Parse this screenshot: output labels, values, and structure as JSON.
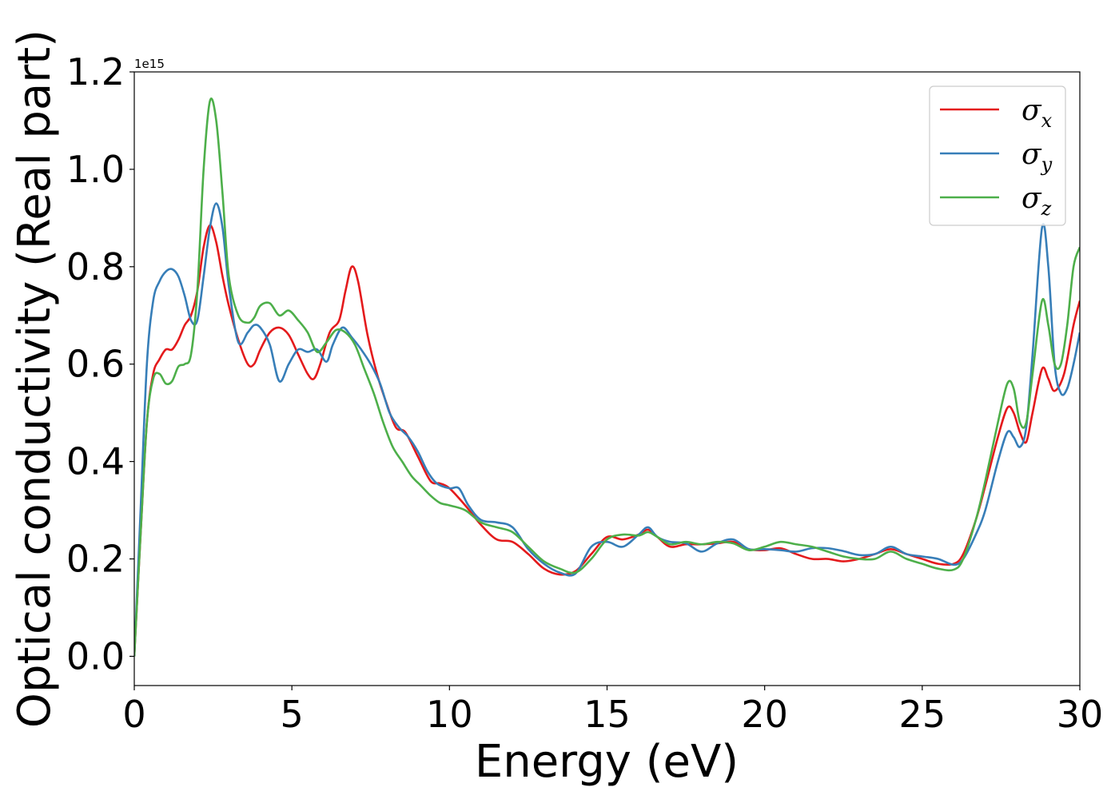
{
  "chart_data": {
    "type": "line",
    "title": "",
    "xlabel": "Energy (eV)",
    "ylabel": "Optical conductivity (Real part)",
    "y_offset_label": "1e15",
    "y_scale": 1000000000000000.0,
    "xlim": [
      0,
      30
    ],
    "ylim": [
      -0.06,
      1.2
    ],
    "x_ticks": [
      0,
      5,
      10,
      15,
      20,
      25,
      30
    ],
    "x_tick_labels": [
      "0",
      "5",
      "10",
      "15",
      "20",
      "25",
      "30"
    ],
    "y_ticks": [
      0.0,
      0.2,
      0.4,
      0.6,
      0.8,
      1.0,
      1.2
    ],
    "y_tick_labels": [
      "0.0",
      "0.2",
      "0.4",
      "0.6",
      "0.8",
      "1.0",
      "1.2"
    ],
    "grid": false,
    "legend": {
      "position": "top-right",
      "entries": [
        {
          "symbol": "σ",
          "subscript": "x",
          "color": "#e41a1c"
        },
        {
          "symbol": "σ",
          "subscript": "y",
          "color": "#377eb8"
        },
        {
          "symbol": "σ",
          "subscript": "z",
          "color": "#4daf4a"
        }
      ]
    },
    "series": [
      {
        "name": "σx",
        "color": "#e41a1c",
        "points": [
          [
            0,
            0.0
          ],
          [
            0.2,
            0.25
          ],
          [
            0.4,
            0.48
          ],
          [
            0.6,
            0.58
          ],
          [
            0.8,
            0.61
          ],
          [
            1.0,
            0.63
          ],
          [
            1.2,
            0.63
          ],
          [
            1.4,
            0.65
          ],
          [
            1.6,
            0.68
          ],
          [
            1.8,
            0.7
          ],
          [
            2.0,
            0.75
          ],
          [
            2.2,
            0.84
          ],
          [
            2.4,
            0.885
          ],
          [
            2.6,
            0.85
          ],
          [
            2.8,
            0.78
          ],
          [
            3.0,
            0.72
          ],
          [
            3.3,
            0.65
          ],
          [
            3.6,
            0.6
          ],
          [
            3.8,
            0.6
          ],
          [
            4.0,
            0.63
          ],
          [
            4.3,
            0.665
          ],
          [
            4.6,
            0.675
          ],
          [
            4.9,
            0.66
          ],
          [
            5.2,
            0.62
          ],
          [
            5.5,
            0.58
          ],
          [
            5.7,
            0.57
          ],
          [
            5.9,
            0.6
          ],
          [
            6.2,
            0.665
          ],
          [
            6.5,
            0.69
          ],
          [
            6.7,
            0.75
          ],
          [
            6.9,
            0.8
          ],
          [
            7.1,
            0.77
          ],
          [
            7.4,
            0.66
          ],
          [
            7.7,
            0.58
          ],
          [
            8.0,
            0.52
          ],
          [
            8.3,
            0.47
          ],
          [
            8.6,
            0.46
          ],
          [
            9.0,
            0.41
          ],
          [
            9.4,
            0.36
          ],
          [
            9.7,
            0.355
          ],
          [
            10.0,
            0.345
          ],
          [
            10.5,
            0.31
          ],
          [
            11.0,
            0.27
          ],
          [
            11.5,
            0.24
          ],
          [
            12.0,
            0.235
          ],
          [
            12.5,
            0.21
          ],
          [
            13.0,
            0.18
          ],
          [
            13.5,
            0.168
          ],
          [
            14.0,
            0.175
          ],
          [
            14.5,
            0.21
          ],
          [
            15.0,
            0.245
          ],
          [
            15.5,
            0.24
          ],
          [
            16.0,
            0.25
          ],
          [
            16.3,
            0.26
          ],
          [
            16.6,
            0.245
          ],
          [
            17.0,
            0.225
          ],
          [
            17.5,
            0.23
          ],
          [
            18.0,
            0.23
          ],
          [
            18.5,
            0.232
          ],
          [
            19.0,
            0.235
          ],
          [
            19.5,
            0.22
          ],
          [
            20.0,
            0.218
          ],
          [
            20.5,
            0.222
          ],
          [
            21.0,
            0.21
          ],
          [
            21.5,
            0.2
          ],
          [
            22.0,
            0.2
          ],
          [
            22.5,
            0.195
          ],
          [
            23.0,
            0.2
          ],
          [
            23.5,
            0.21
          ],
          [
            24.0,
            0.22
          ],
          [
            24.5,
            0.21
          ],
          [
            25.0,
            0.2
          ],
          [
            25.5,
            0.19
          ],
          [
            26.0,
            0.19
          ],
          [
            26.3,
            0.21
          ],
          [
            26.7,
            0.28
          ],
          [
            27.0,
            0.35
          ],
          [
            27.4,
            0.45
          ],
          [
            27.7,
            0.51
          ],
          [
            27.9,
            0.5
          ],
          [
            28.1,
            0.46
          ],
          [
            28.3,
            0.44
          ],
          [
            28.5,
            0.5
          ],
          [
            28.8,
            0.59
          ],
          [
            29.0,
            0.57
          ],
          [
            29.2,
            0.545
          ],
          [
            29.5,
            0.58
          ],
          [
            29.8,
            0.68
          ],
          [
            30.0,
            0.73
          ]
        ]
      },
      {
        "name": "σy",
        "color": "#377eb8",
        "points": [
          [
            0,
            0.0
          ],
          [
            0.2,
            0.3
          ],
          [
            0.4,
            0.6
          ],
          [
            0.6,
            0.73
          ],
          [
            0.8,
            0.77
          ],
          [
            1.0,
            0.79
          ],
          [
            1.2,
            0.795
          ],
          [
            1.4,
            0.78
          ],
          [
            1.6,
            0.74
          ],
          [
            1.8,
            0.69
          ],
          [
            2.0,
            0.69
          ],
          [
            2.2,
            0.78
          ],
          [
            2.4,
            0.88
          ],
          [
            2.6,
            0.93
          ],
          [
            2.8,
            0.88
          ],
          [
            3.0,
            0.76
          ],
          [
            3.3,
            0.645
          ],
          [
            3.6,
            0.665
          ],
          [
            3.8,
            0.68
          ],
          [
            4.0,
            0.675
          ],
          [
            4.3,
            0.64
          ],
          [
            4.6,
            0.565
          ],
          [
            4.9,
            0.6
          ],
          [
            5.2,
            0.63
          ],
          [
            5.5,
            0.625
          ],
          [
            5.8,
            0.63
          ],
          [
            6.1,
            0.605
          ],
          [
            6.3,
            0.64
          ],
          [
            6.6,
            0.675
          ],
          [
            6.9,
            0.655
          ],
          [
            7.2,
            0.63
          ],
          [
            7.5,
            0.6
          ],
          [
            7.8,
            0.56
          ],
          [
            8.1,
            0.5
          ],
          [
            8.4,
            0.47
          ],
          [
            8.7,
            0.45
          ],
          [
            9.0,
            0.42
          ],
          [
            9.3,
            0.38
          ],
          [
            9.6,
            0.355
          ],
          [
            10.0,
            0.345
          ],
          [
            10.3,
            0.345
          ],
          [
            10.6,
            0.31
          ],
          [
            11.0,
            0.28
          ],
          [
            11.5,
            0.275
          ],
          [
            12.0,
            0.265
          ],
          [
            12.5,
            0.22
          ],
          [
            13.0,
            0.19
          ],
          [
            13.5,
            0.172
          ],
          [
            14.0,
            0.17
          ],
          [
            14.5,
            0.225
          ],
          [
            15.0,
            0.235
          ],
          [
            15.5,
            0.225
          ],
          [
            16.0,
            0.25
          ],
          [
            16.3,
            0.265
          ],
          [
            16.6,
            0.245
          ],
          [
            17.0,
            0.235
          ],
          [
            17.5,
            0.232
          ],
          [
            18.0,
            0.215
          ],
          [
            18.5,
            0.232
          ],
          [
            19.0,
            0.24
          ],
          [
            19.5,
            0.22
          ],
          [
            20.0,
            0.22
          ],
          [
            20.5,
            0.218
          ],
          [
            21.0,
            0.215
          ],
          [
            21.5,
            0.222
          ],
          [
            22.0,
            0.222
          ],
          [
            22.5,
            0.216
          ],
          [
            23.0,
            0.208
          ],
          [
            23.5,
            0.21
          ],
          [
            24.0,
            0.225
          ],
          [
            24.5,
            0.21
          ],
          [
            25.0,
            0.205
          ],
          [
            25.5,
            0.2
          ],
          [
            26.0,
            0.188
          ],
          [
            26.3,
            0.2
          ],
          [
            26.7,
            0.25
          ],
          [
            27.0,
            0.3
          ],
          [
            27.4,
            0.4
          ],
          [
            27.7,
            0.46
          ],
          [
            27.9,
            0.45
          ],
          [
            28.1,
            0.43
          ],
          [
            28.3,
            0.47
          ],
          [
            28.5,
            0.62
          ],
          [
            28.8,
            0.88
          ],
          [
            29.0,
            0.8
          ],
          [
            29.2,
            0.6
          ],
          [
            29.4,
            0.54
          ],
          [
            29.6,
            0.55
          ],
          [
            29.8,
            0.6
          ],
          [
            30.0,
            0.665
          ]
        ]
      },
      {
        "name": "σz",
        "color": "#4daf4a",
        "points": [
          [
            0,
            0.0
          ],
          [
            0.2,
            0.25
          ],
          [
            0.4,
            0.48
          ],
          [
            0.6,
            0.57
          ],
          [
            0.8,
            0.58
          ],
          [
            1.0,
            0.56
          ],
          [
            1.2,
            0.565
          ],
          [
            1.4,
            0.595
          ],
          [
            1.6,
            0.6
          ],
          [
            1.8,
            0.62
          ],
          [
            2.0,
            0.75
          ],
          [
            2.2,
            1.0
          ],
          [
            2.4,
            1.14
          ],
          [
            2.6,
            1.1
          ],
          [
            2.8,
            0.95
          ],
          [
            3.0,
            0.78
          ],
          [
            3.3,
            0.7
          ],
          [
            3.6,
            0.685
          ],
          [
            3.8,
            0.695
          ],
          [
            4.0,
            0.72
          ],
          [
            4.3,
            0.725
          ],
          [
            4.6,
            0.7
          ],
          [
            4.9,
            0.71
          ],
          [
            5.2,
            0.69
          ],
          [
            5.5,
            0.665
          ],
          [
            5.8,
            0.625
          ],
          [
            6.1,
            0.645
          ],
          [
            6.4,
            0.67
          ],
          [
            6.7,
            0.665
          ],
          [
            7.0,
            0.64
          ],
          [
            7.3,
            0.59
          ],
          [
            7.6,
            0.54
          ],
          [
            7.9,
            0.48
          ],
          [
            8.2,
            0.43
          ],
          [
            8.5,
            0.4
          ],
          [
            8.8,
            0.37
          ],
          [
            9.1,
            0.35
          ],
          [
            9.4,
            0.33
          ],
          [
            9.7,
            0.315
          ],
          [
            10.0,
            0.31
          ],
          [
            10.5,
            0.3
          ],
          [
            11.0,
            0.275
          ],
          [
            11.5,
            0.265
          ],
          [
            12.0,
            0.255
          ],
          [
            12.5,
            0.225
          ],
          [
            13.0,
            0.195
          ],
          [
            13.5,
            0.18
          ],
          [
            14.0,
            0.172
          ],
          [
            14.5,
            0.2
          ],
          [
            15.0,
            0.24
          ],
          [
            15.5,
            0.25
          ],
          [
            16.0,
            0.248
          ],
          [
            16.3,
            0.255
          ],
          [
            16.6,
            0.245
          ],
          [
            17.0,
            0.23
          ],
          [
            17.5,
            0.235
          ],
          [
            18.0,
            0.23
          ],
          [
            18.5,
            0.235
          ],
          [
            19.0,
            0.232
          ],
          [
            19.5,
            0.218
          ],
          [
            20.0,
            0.225
          ],
          [
            20.5,
            0.235
          ],
          [
            21.0,
            0.23
          ],
          [
            21.5,
            0.225
          ],
          [
            22.0,
            0.215
          ],
          [
            22.5,
            0.205
          ],
          [
            23.0,
            0.2
          ],
          [
            23.5,
            0.2
          ],
          [
            24.0,
            0.215
          ],
          [
            24.5,
            0.2
          ],
          [
            25.0,
            0.19
          ],
          [
            25.5,
            0.18
          ],
          [
            26.0,
            0.178
          ],
          [
            26.3,
            0.2
          ],
          [
            26.7,
            0.28
          ],
          [
            27.0,
            0.36
          ],
          [
            27.4,
            0.48
          ],
          [
            27.7,
            0.56
          ],
          [
            27.9,
            0.55
          ],
          [
            28.1,
            0.48
          ],
          [
            28.3,
            0.48
          ],
          [
            28.5,
            0.58
          ],
          [
            28.8,
            0.73
          ],
          [
            29.0,
            0.68
          ],
          [
            29.2,
            0.6
          ],
          [
            29.4,
            0.6
          ],
          [
            29.6,
            0.68
          ],
          [
            29.8,
            0.8
          ],
          [
            30.0,
            0.84
          ]
        ]
      }
    ]
  }
}
